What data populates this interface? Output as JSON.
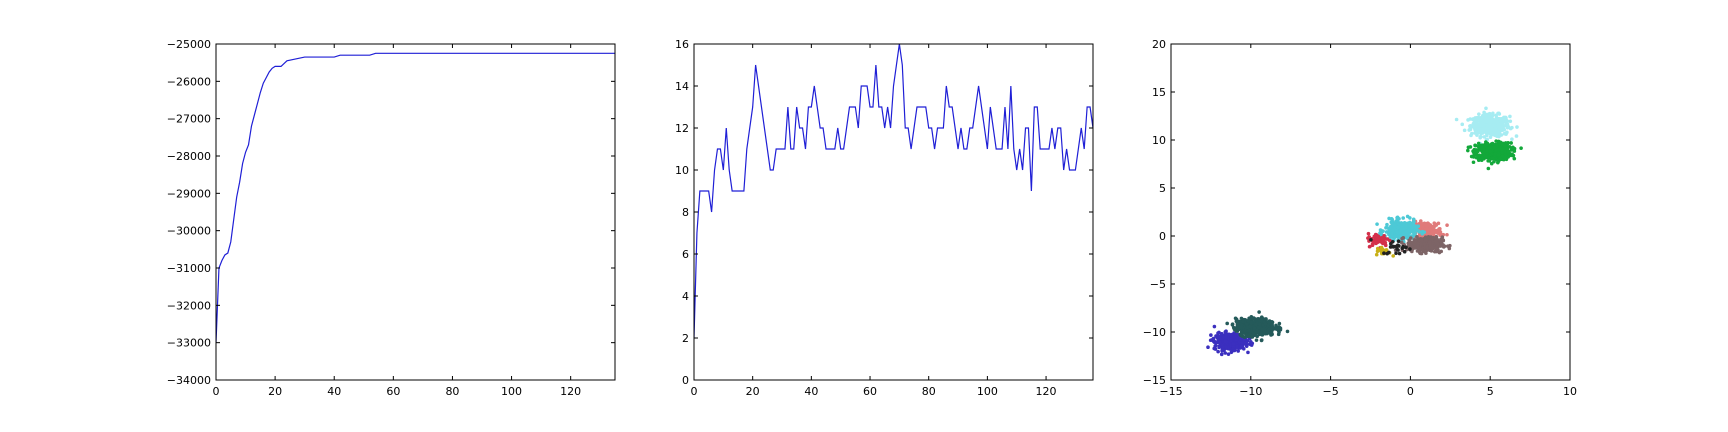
{
  "chart_data": [
    {
      "type": "line",
      "title": "",
      "xlabel": "",
      "ylabel": "",
      "xlim": [
        0,
        135
      ],
      "ylim": [
        -34000,
        -25000
      ],
      "xticks": [
        0,
        20,
        40,
        60,
        80,
        100,
        120
      ],
      "yticks": [
        -34000,
        -33000,
        -32000,
        -31000,
        -30000,
        -29000,
        -28000,
        -27000,
        -26000,
        -25000
      ],
      "grid": false,
      "series": [
        {
          "color": "#1f1fd6",
          "points": [
            [
              0,
              -33000
            ],
            [
              1,
              -31000
            ],
            [
              2,
              -30800
            ],
            [
              3,
              -30650
            ],
            [
              4,
              -30600
            ],
            [
              5,
              -30300
            ],
            [
              6,
              -29700
            ],
            [
              7,
              -29100
            ],
            [
              8,
              -28700
            ],
            [
              9,
              -28200
            ],
            [
              10,
              -27900
            ],
            [
              11,
              -27700
            ],
            [
              12,
              -27200
            ],
            [
              13,
              -26900
            ],
            [
              14,
              -26600
            ],
            [
              15,
              -26300
            ],
            [
              16,
              -26050
            ],
            [
              17,
              -25900
            ],
            [
              18,
              -25750
            ],
            [
              19,
              -25650
            ],
            [
              20,
              -25600
            ],
            [
              22,
              -25600
            ],
            [
              24,
              -25450
            ],
            [
              27,
              -25400
            ],
            [
              30,
              -25350
            ],
            [
              40,
              -25350
            ],
            [
              42,
              -25300
            ],
            [
              52,
              -25300
            ],
            [
              54,
              -25250
            ],
            [
              135,
              -25250
            ]
          ]
        }
      ]
    },
    {
      "type": "line",
      "title": "",
      "xlabel": "",
      "ylabel": "",
      "xlim": [
        0,
        136
      ],
      "ylim": [
        0,
        16
      ],
      "xticks": [
        0,
        20,
        40,
        60,
        80,
        100,
        120
      ],
      "yticks": [
        0,
        2,
        4,
        6,
        8,
        10,
        12,
        14,
        16
      ],
      "grid": false,
      "series": [
        {
          "color": "#1f1fd6",
          "points": [
            [
              0,
              2
            ],
            [
              1,
              7
            ],
            [
              2,
              9
            ],
            [
              3,
              9
            ],
            [
              4,
              9
            ],
            [
              5,
              9
            ],
            [
              6,
              8
            ],
            [
              7,
              10
            ],
            [
              8,
              11
            ],
            [
              9,
              11
            ],
            [
              10,
              10
            ],
            [
              11,
              12
            ],
            [
              12,
              10
            ],
            [
              13,
              9
            ],
            [
              14,
              9
            ],
            [
              15,
              9
            ],
            [
              16,
              9
            ],
            [
              17,
              9
            ],
            [
              18,
              11
            ],
            [
              19,
              12
            ],
            [
              20,
              13
            ],
            [
              21,
              15
            ],
            [
              22,
              14
            ],
            [
              23,
              13
            ],
            [
              24,
              12
            ],
            [
              25,
              11
            ],
            [
              26,
              10
            ],
            [
              27,
              10
            ],
            [
              28,
              11
            ],
            [
              29,
              11
            ],
            [
              30,
              11
            ],
            [
              31,
              11
            ],
            [
              32,
              13
            ],
            [
              33,
              11
            ],
            [
              34,
              11
            ],
            [
              35,
              13
            ],
            [
              36,
              12
            ],
            [
              37,
              12
            ],
            [
              38,
              11
            ],
            [
              39,
              13
            ],
            [
              40,
              13
            ],
            [
              41,
              14
            ],
            [
              42,
              13
            ],
            [
              43,
              12
            ],
            [
              44,
              12
            ],
            [
              45,
              11
            ],
            [
              46,
              11
            ],
            [
              47,
              11
            ],
            [
              48,
              11
            ],
            [
              49,
              12
            ],
            [
              50,
              11
            ],
            [
              51,
              11
            ],
            [
              52,
              12
            ],
            [
              53,
              13
            ],
            [
              54,
              13
            ],
            [
              55,
              13
            ],
            [
              56,
              12
            ],
            [
              57,
              14
            ],
            [
              58,
              14
            ],
            [
              59,
              14
            ],
            [
              60,
              13
            ],
            [
              61,
              13
            ],
            [
              62,
              15
            ],
            [
              63,
              13
            ],
            [
              64,
              13
            ],
            [
              65,
              12
            ],
            [
              66,
              13
            ],
            [
              67,
              12
            ],
            [
              68,
              14
            ],
            [
              69,
              15
            ],
            [
              70,
              16
            ],
            [
              71,
              15
            ],
            [
              72,
              12
            ],
            [
              73,
              12
            ],
            [
              74,
              11
            ],
            [
              75,
              12
            ],
            [
              76,
              13
            ],
            [
              77,
              13
            ],
            [
              78,
              13
            ],
            [
              79,
              13
            ],
            [
              80,
              12
            ],
            [
              81,
              12
            ],
            [
              82,
              11
            ],
            [
              83,
              12
            ],
            [
              84,
              12
            ],
            [
              85,
              12
            ],
            [
              86,
              14
            ],
            [
              87,
              13
            ],
            [
              88,
              13
            ],
            [
              89,
              12
            ],
            [
              90,
              11
            ],
            [
              91,
              12
            ],
            [
              92,
              11
            ],
            [
              93,
              11
            ],
            [
              94,
              12
            ],
            [
              95,
              12
            ],
            [
              96,
              13
            ],
            [
              97,
              14
            ],
            [
              98,
              13
            ],
            [
              99,
              12
            ],
            [
              100,
              11
            ],
            [
              101,
              13
            ],
            [
              102,
              12
            ],
            [
              103,
              11
            ],
            [
              104,
              11
            ],
            [
              105,
              11
            ],
            [
              106,
              13
            ],
            [
              107,
              11
            ],
            [
              108,
              14
            ],
            [
              109,
              11
            ],
            [
              110,
              10
            ],
            [
              111,
              11
            ],
            [
              112,
              10
            ],
            [
              113,
              12
            ],
            [
              114,
              12
            ],
            [
              115,
              9
            ],
            [
              116,
              13
            ],
            [
              117,
              13
            ],
            [
              118,
              11
            ],
            [
              119,
              11
            ],
            [
              120,
              11
            ],
            [
              121,
              11
            ],
            [
              122,
              12
            ],
            [
              123,
              11
            ],
            [
              124,
              12
            ],
            [
              125,
              12
            ],
            [
              126,
              10
            ],
            [
              127,
              11
            ],
            [
              128,
              10
            ],
            [
              129,
              10
            ],
            [
              130,
              10
            ],
            [
              131,
              11
            ],
            [
              132,
              12
            ],
            [
              133,
              11
            ],
            [
              134,
              13
            ],
            [
              135,
              13
            ],
            [
              136,
              12
            ]
          ]
        }
      ]
    },
    {
      "type": "scatter",
      "title": "",
      "xlabel": "",
      "ylabel": "",
      "xlim": [
        -15,
        10
      ],
      "ylim": [
        -15,
        20
      ],
      "xticks": [
        -15,
        -10,
        -5,
        0,
        5,
        10
      ],
      "yticks": [
        -15,
        -10,
        -5,
        0,
        5,
        10,
        15,
        20
      ],
      "grid": false,
      "clusters": [
        {
          "color": "#a6ecf2",
          "center": [
            5.0,
            11.5
          ],
          "spread": [
            1.1,
            1.0
          ],
          "count": 420
        },
        {
          "color": "#13a83a",
          "center": [
            5.2,
            8.8
          ],
          "spread": [
            1.0,
            0.8
          ],
          "count": 520
        },
        {
          "color": "#e07a7a",
          "center": [
            1.0,
            0.6
          ],
          "spread": [
            0.9,
            0.8
          ],
          "count": 160
        },
        {
          "color": "#4dc9d6",
          "center": [
            -0.6,
            0.6
          ],
          "spread": [
            0.9,
            0.9
          ],
          "count": 320
        },
        {
          "color": "#7d6466",
          "center": [
            0.9,
            -0.9
          ],
          "spread": [
            1.0,
            0.7
          ],
          "count": 300
        },
        {
          "color": "#d4304a",
          "center": [
            -2.0,
            -0.4
          ],
          "spread": [
            0.6,
            0.6
          ],
          "count": 60
        },
        {
          "color": "#c8b018",
          "center": [
            -1.7,
            -1.6
          ],
          "spread": [
            0.4,
            0.4
          ],
          "count": 24
        },
        {
          "color": "#222222",
          "center": [
            -0.8,
            -1.2
          ],
          "spread": [
            0.9,
            0.7
          ],
          "count": 24
        },
        {
          "color": "#3b2fbf",
          "center": [
            -11.3,
            -11.0
          ],
          "spread": [
            0.9,
            0.8
          ],
          "count": 360
        },
        {
          "color": "#255a5a",
          "center": [
            -9.7,
            -9.5
          ],
          "spread": [
            1.1,
            0.8
          ],
          "count": 520
        }
      ]
    }
  ]
}
